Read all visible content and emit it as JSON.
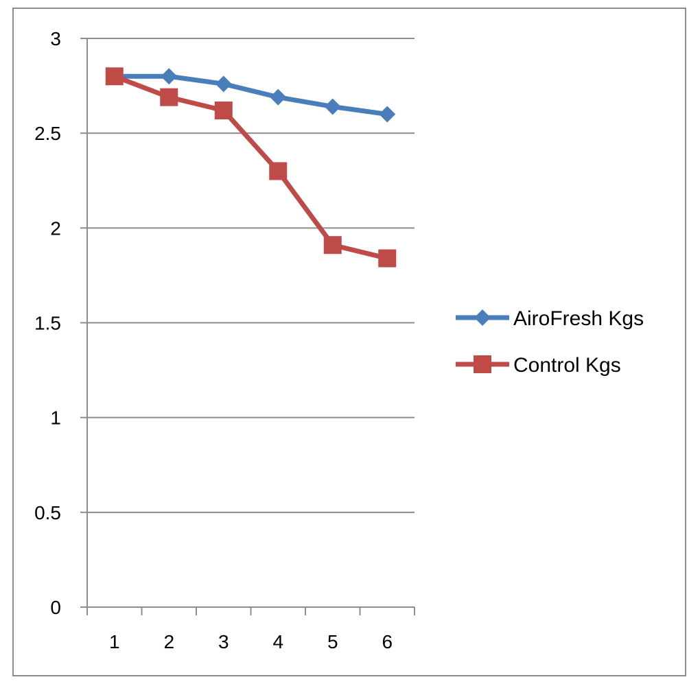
{
  "chart_data": {
    "type": "line",
    "title": "",
    "xlabel": "",
    "ylabel": "",
    "categories": [
      "1",
      "2",
      "3",
      "4",
      "5",
      "6"
    ],
    "ylim": [
      0,
      3
    ],
    "yticks": [
      "0",
      "0.5",
      "1",
      "1.5",
      "2",
      "2.5",
      "3"
    ],
    "grid": true,
    "legend_position": "right",
    "series": [
      {
        "name": "AiroFresh Kgs",
        "color": "#4a7ebb",
        "marker": "diamond",
        "values": [
          2.8,
          2.8,
          2.76,
          2.69,
          2.64,
          2.6
        ]
      },
      {
        "name": "Control Kgs",
        "color": "#be4b48",
        "marker": "square",
        "values": [
          2.8,
          2.69,
          2.62,
          2.3,
          1.91,
          1.84
        ]
      }
    ]
  }
}
